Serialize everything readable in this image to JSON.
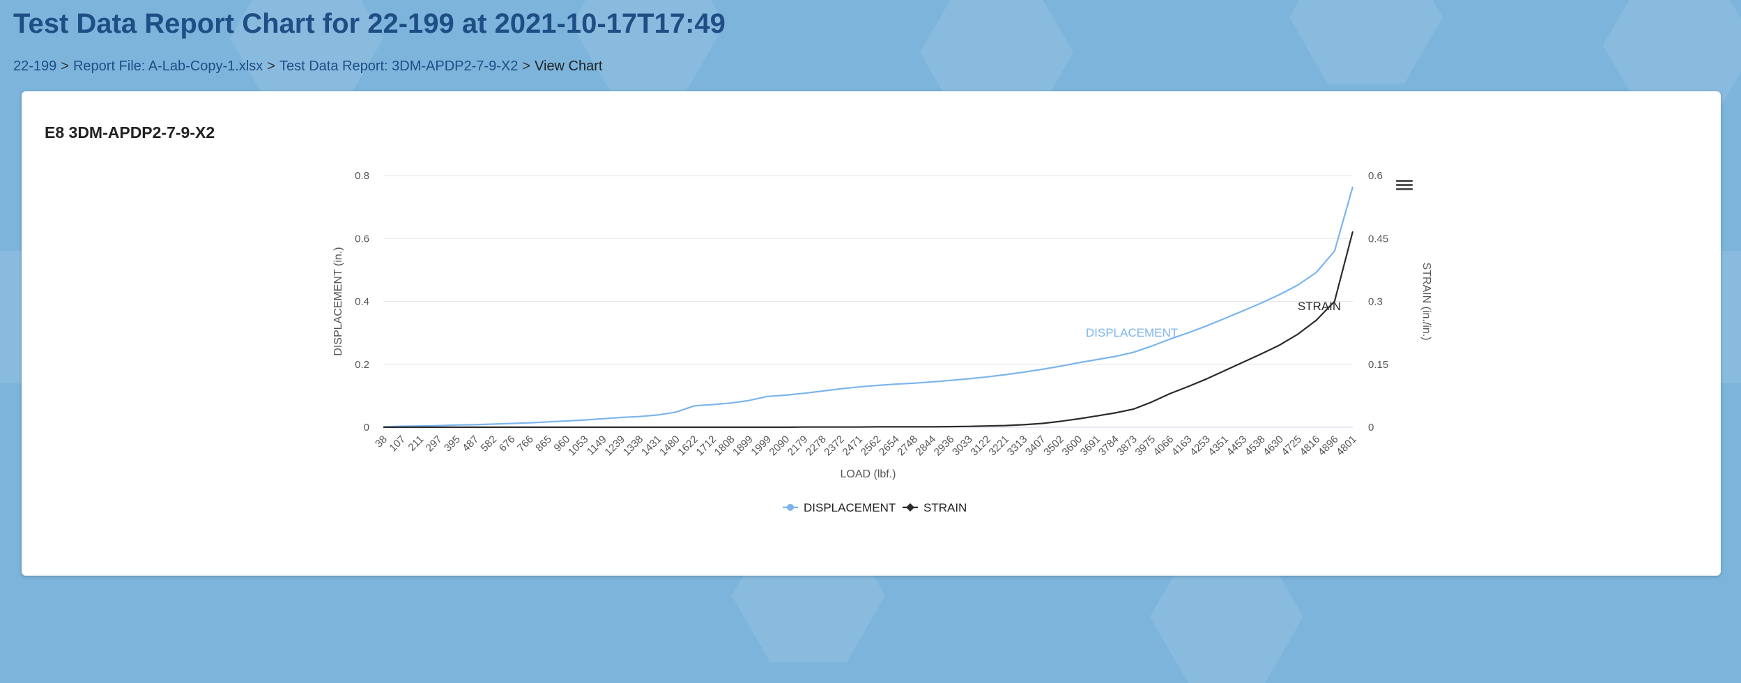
{
  "header": {
    "title": "Test Data Report Chart for 22-199 at 2021-10-17T17:49",
    "breadcrumb": {
      "job": "22-199",
      "report_file": "Report File: A-Lab-Copy-1.xlsx",
      "test_report": "Test Data Report: 3DM-APDP2-7-9-X2",
      "current": "View Chart",
      "separator": ">"
    }
  },
  "card": {
    "title": "E8 3DM-APDP2-7-9-X2"
  },
  "colors": {
    "displacement": "#7cb5ec",
    "strain": "#2b2b2b",
    "page_background": "#7cb4dc"
  },
  "chart_data": {
    "type": "line",
    "xlabel": "LOAD (lbf.)",
    "ylabel_left": "DISPLACEMENT (in.)",
    "ylabel_right": "STRAIN (in./in.)",
    "categories": [
      "38",
      "107",
      "211",
      "297",
      "395",
      "487",
      "582",
      "676",
      "766",
      "865",
      "960",
      "1053",
      "1149",
      "1239",
      "1338",
      "1431",
      "1480",
      "1622",
      "1712",
      "1808",
      "1899",
      "1999",
      "2090",
      "2179",
      "2278",
      "2372",
      "2471",
      "2562",
      "2654",
      "2748",
      "2844",
      "2936",
      "3033",
      "3122",
      "3221",
      "3313",
      "3407",
      "3502",
      "3600",
      "3691",
      "3784",
      "3873",
      "3975",
      "4066",
      "4163",
      "4253",
      "4351",
      "4453",
      "4538",
      "4630",
      "4725",
      "4816",
      "4896",
      "4801"
    ],
    "ylim_left": [
      0,
      0.8
    ],
    "yticks_left": [
      "0",
      "0.2",
      "0.4",
      "0.6",
      "0.8"
    ],
    "ylim_right": [
      0,
      0.6
    ],
    "yticks_right": [
      "0",
      "0.15",
      "0.3",
      "0.45",
      "0.6"
    ],
    "grid": true,
    "legend_position": "bottom-center",
    "series": [
      {
        "name": "DISPLACEMENT",
        "axis": "left",
        "label": "DISPLACEMENT",
        "values": [
          0.001,
          0.003,
          0.004,
          0.005,
          0.007,
          0.008,
          0.01,
          0.012,
          0.014,
          0.017,
          0.02,
          0.023,
          0.027,
          0.031,
          0.034,
          0.039,
          0.048,
          0.068,
          0.072,
          0.077,
          0.085,
          0.098,
          0.102,
          0.108,
          0.115,
          0.122,
          0.128,
          0.133,
          0.137,
          0.14,
          0.144,
          0.149,
          0.154,
          0.16,
          0.167,
          0.175,
          0.184,
          0.194,
          0.205,
          0.215,
          0.225,
          0.238,
          0.258,
          0.28,
          0.3,
          0.322,
          0.346,
          0.37,
          0.395,
          0.422,
          0.452,
          0.492,
          0.56,
          0.765
        ]
      },
      {
        "name": "STRAIN",
        "axis": "right",
        "label": "STRAIN",
        "values": [
          0,
          0,
          0,
          0,
          0,
          0,
          0,
          0,
          0,
          0,
          0,
          0,
          0,
          0,
          0,
          0,
          0,
          0,
          0,
          0,
          0,
          0,
          0,
          0.0005,
          0.0005,
          0.0005,
          0.0005,
          0.001,
          0.001,
          0.001,
          0.001,
          0.0015,
          0.002,
          0.003,
          0.004,
          0.006,
          0.009,
          0.014,
          0.02,
          0.027,
          0.034,
          0.043,
          0.06,
          0.08,
          0.097,
          0.115,
          0.135,
          0.155,
          0.175,
          0.196,
          0.222,
          0.255,
          0.3,
          0.467
        ]
      }
    ]
  }
}
